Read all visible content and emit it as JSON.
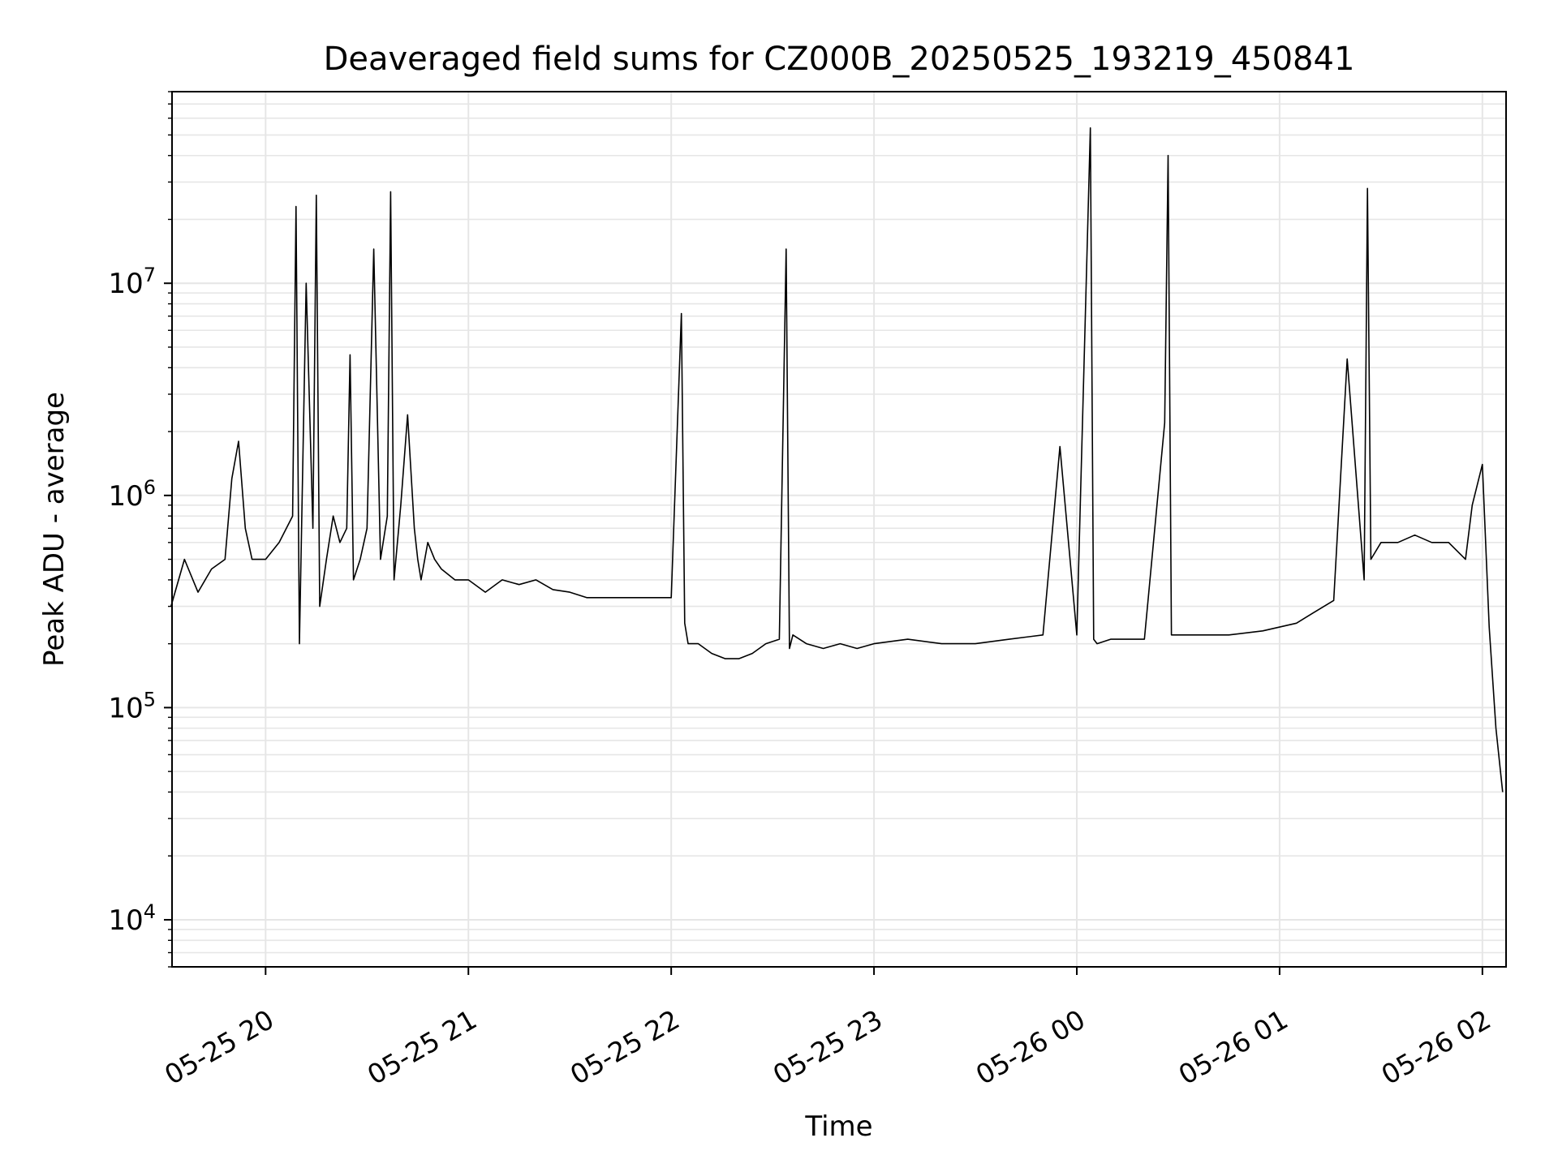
{
  "chart_data": {
    "type": "line",
    "title": "Deaveraged field sums for CZ000B_20250525_193219_450841",
    "xlabel": "Time",
    "ylabel": "Peak ADU - average",
    "yscale": "log",
    "ylim": [
      6000,
      80000000
    ],
    "xlim": [
      "2025-05-25 19:32:19",
      "2025-05-26 02:07:00"
    ],
    "x_tick_labels": [
      "05-25 20",
      "05-25 21",
      "05-25 22",
      "05-25 23",
      "05-26 00",
      "05-26 01",
      "05-26 02"
    ],
    "x_ticks": [
      "2025-05-25 20:00",
      "2025-05-25 21:00",
      "2025-05-25 22:00",
      "2025-05-25 23:00",
      "2025-05-26 00:00",
      "2025-05-26 01:00",
      "2025-05-26 02:00"
    ],
    "y_ticks": [
      {
        "value": 10000,
        "label": "10",
        "exp": "4"
      },
      {
        "value": 100000,
        "label": "10",
        "exp": "5"
      },
      {
        "value": 1000000,
        "label": "10",
        "exp": "6"
      },
      {
        "value": 10000000,
        "label": "10",
        "exp": "7"
      }
    ],
    "grid": true,
    "line_color": "#000000",
    "grid_color": "#e6e6e6",
    "series": [
      {
        "x": [
          "2025-05-25 19:32",
          "2025-05-25 19:36",
          "2025-05-25 19:40",
          "2025-05-25 19:44",
          "2025-05-25 19:48",
          "2025-05-25 19:50",
          "2025-05-25 19:52",
          "2025-05-25 19:54",
          "2025-05-25 19:56",
          "2025-05-25 20:00",
          "2025-05-25 20:04",
          "2025-05-25 20:08",
          "2025-05-25 20:09",
          "2025-05-25 20:10",
          "2025-05-25 20:12",
          "2025-05-25 20:14",
          "2025-05-25 20:15",
          "2025-05-25 20:16",
          "2025-05-25 20:18",
          "2025-05-25 20:20",
          "2025-05-25 20:22",
          "2025-05-25 20:24",
          "2025-05-25 20:25",
          "2025-05-25 20:26",
          "2025-05-25 20:28",
          "2025-05-25 20:30",
          "2025-05-25 20:32",
          "2025-05-25 20:34",
          "2025-05-25 20:36",
          "2025-05-25 20:37",
          "2025-05-25 20:38",
          "2025-05-25 20:40",
          "2025-05-25 20:42",
          "2025-05-25 20:44",
          "2025-05-25 20:45",
          "2025-05-25 20:46",
          "2025-05-25 20:48",
          "2025-05-25 20:50",
          "2025-05-25 20:52",
          "2025-05-25 20:56",
          "2025-05-25 21:00",
          "2025-05-25 21:05",
          "2025-05-25 21:10",
          "2025-05-25 21:15",
          "2025-05-25 21:20",
          "2025-05-25 21:25",
          "2025-05-25 21:30",
          "2025-05-25 21:35",
          "2025-05-25 21:40",
          "2025-05-25 21:45",
          "2025-05-25 21:50",
          "2025-05-25 21:55",
          "2025-05-25 22:00",
          "2025-05-25 22:03",
          "2025-05-25 22:04",
          "2025-05-25 22:05",
          "2025-05-25 22:08",
          "2025-05-25 22:12",
          "2025-05-25 22:16",
          "2025-05-25 22:20",
          "2025-05-25 22:24",
          "2025-05-25 22:28",
          "2025-05-25 22:32",
          "2025-05-25 22:34",
          "2025-05-25 22:35",
          "2025-05-25 22:36",
          "2025-05-25 22:40",
          "2025-05-25 22:45",
          "2025-05-25 22:50",
          "2025-05-25 22:55",
          "2025-05-25 23:00",
          "2025-05-25 23:10",
          "2025-05-25 23:20",
          "2025-05-25 23:30",
          "2025-05-25 23:40",
          "2025-05-25 23:50",
          "2025-05-25 23:55",
          "2025-05-26 00:00",
          "2025-05-26 00:04",
          "2025-05-26 00:05",
          "2025-05-26 00:06",
          "2025-05-26 00:10",
          "2025-05-26 00:20",
          "2025-05-26 00:26",
          "2025-05-26 00:27",
          "2025-05-26 00:28",
          "2025-05-26 00:35",
          "2025-05-26 00:45",
          "2025-05-26 00:55",
          "2025-05-26 01:05",
          "2025-05-26 01:10",
          "2025-05-26 01:16",
          "2025-05-26 01:20",
          "2025-05-26 01:25",
          "2025-05-26 01:26",
          "2025-05-26 01:27",
          "2025-05-26 01:30",
          "2025-05-26 01:35",
          "2025-05-26 01:40",
          "2025-05-26 01:45",
          "2025-05-26 01:50",
          "2025-05-26 01:55",
          "2025-05-26 01:57",
          "2025-05-26 02:00",
          "2025-05-26 02:02",
          "2025-05-26 02:04",
          "2025-05-26 02:06"
        ],
        "y": [
          300000,
          500000,
          350000,
          450000,
          500000,
          1200000,
          1800000,
          700000,
          500000,
          500000,
          600000,
          800000,
          23000000,
          200000,
          10000000,
          700000,
          26000000,
          300000,
          500000,
          800000,
          600000,
          700000,
          4600000,
          400000,
          500000,
          700000,
          14500000,
          500000,
          800000,
          27000000,
          400000,
          900000,
          2400000,
          700000,
          500000,
          400000,
          600000,
          500000,
          450000,
          400000,
          400000,
          350000,
          400000,
          380000,
          400000,
          360000,
          350000,
          330000,
          330000,
          330000,
          330000,
          330000,
          330000,
          7200000,
          250000,
          200000,
          200000,
          180000,
          170000,
          170000,
          180000,
          200000,
          210000,
          14500000,
          190000,
          220000,
          200000,
          190000,
          200000,
          190000,
          200000,
          210000,
          200000,
          200000,
          210000,
          220000,
          1700000,
          220000,
          54000000,
          210000,
          200000,
          210000,
          210000,
          2200000,
          40000000,
          220000,
          220000,
          220000,
          230000,
          250000,
          280000,
          320000,
          4400000,
          400000,
          28000000,
          500000,
          600000,
          600000,
          650000,
          600000,
          600000,
          500000,
          900000,
          1400000,
          240000,
          80000,
          40000
        ]
      }
    ]
  }
}
